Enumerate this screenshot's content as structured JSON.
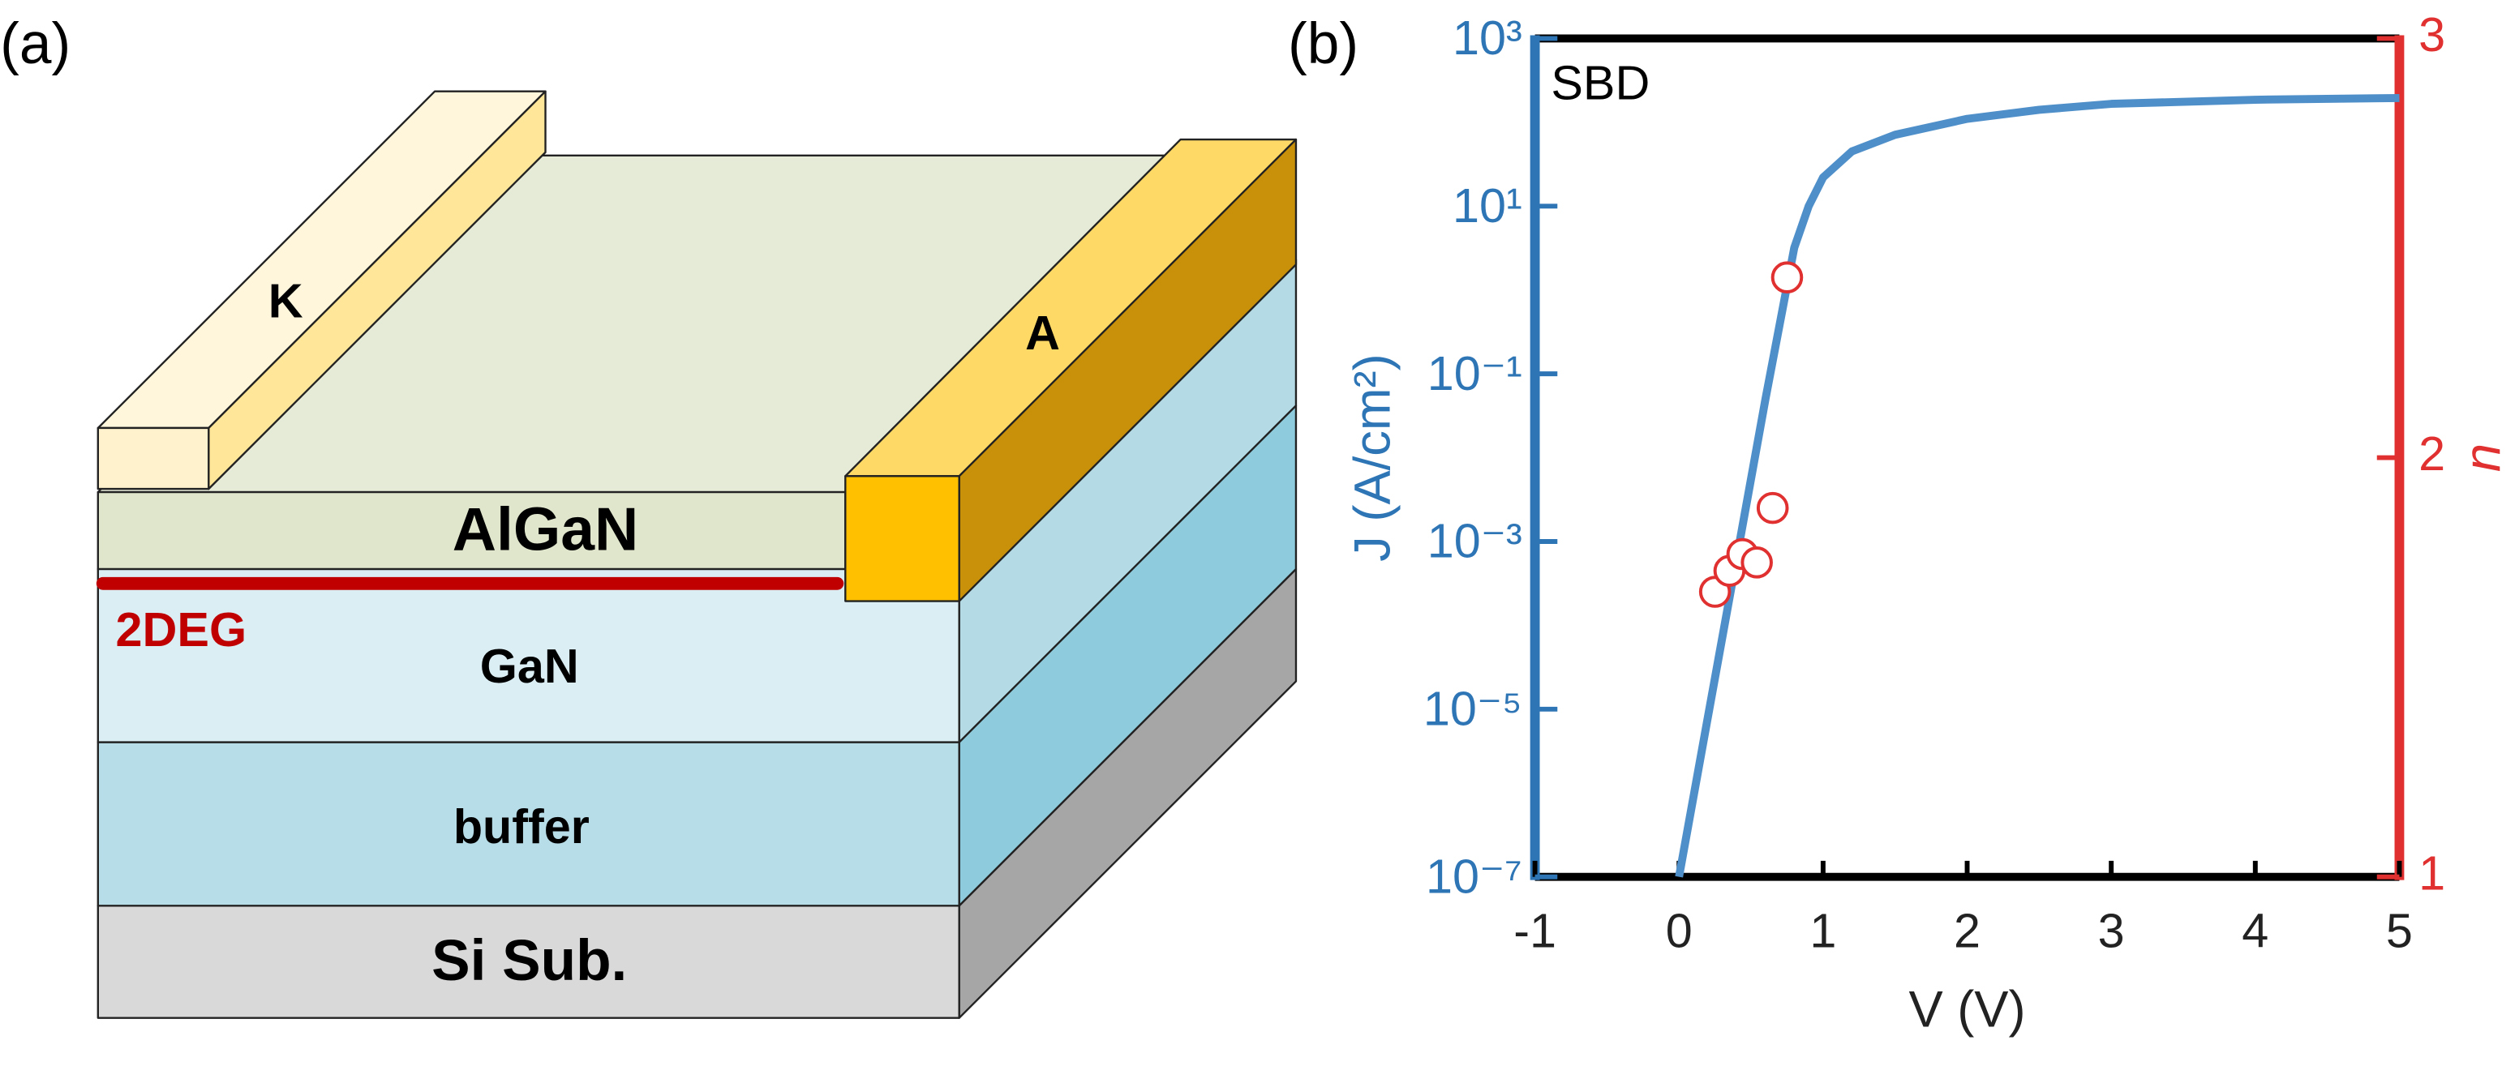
{
  "panel_labels": [
    "(a)",
    "(b)"
  ],
  "diagram": {
    "cathode": "K",
    "anode": "A",
    "layers": [
      "AlGaN",
      "GaN",
      "buffer",
      "Si Sub."
    ],
    "channel": "2DEG"
  },
  "chart_data": {
    "type": "line",
    "annotation": "SBD",
    "x_label": "V (V)",
    "y_label": "J (A/cm²)",
    "y2_label": "n",
    "xlim": [
      -1,
      5
    ],
    "xticks": [
      -1,
      0,
      1,
      2,
      3,
      4,
      5
    ],
    "ylim": [
      1e-07,
      1000
    ],
    "yscale": "log",
    "yticks": [
      {
        "value": 1e-07,
        "label": "10⁻⁷"
      },
      {
        "value": 1e-05,
        "label": "10⁻⁵"
      },
      {
        "value": 0.001,
        "label": "10⁻³"
      },
      {
        "value": 0.1,
        "label": "10⁻¹"
      },
      {
        "value": 10,
        "label": "10¹"
      },
      {
        "value": 1000,
        "label": "10³"
      }
    ],
    "y2lim": [
      1,
      3
    ],
    "y2ticks": [
      1,
      2,
      3
    ],
    "ycolor": "#2e75b6",
    "y2color": "#e03030",
    "grid": false,
    "series": [
      {
        "type": "line",
        "color": "#4f8fc9",
        "x": [
          0,
          0.2,
          0.4,
          0.6,
          0.7,
          0.8,
          0.9,
          1,
          1.2,
          1.5,
          2,
          2.5,
          3,
          4,
          5
        ],
        "values": [
          1e-07,
          8e-06,
          0.00063,
          0.05,
          0.4,
          3.2,
          10,
          22,
          45,
          71,
          110,
          141,
          166,
          186,
          195
        ]
      },
      {
        "type": "scatter",
        "color": "#e03030",
        "axis": "y2",
        "x": [
          0.25,
          0.35,
          0.44,
          0.54,
          0.65,
          0.75
        ],
        "values": [
          1.68,
          1.73,
          1.77,
          1.75,
          1.88,
          2.43
        ]
      }
    ]
  }
}
